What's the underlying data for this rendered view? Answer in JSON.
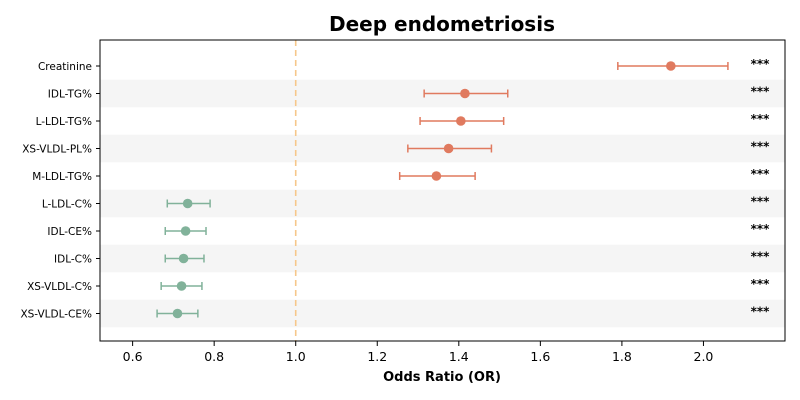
{
  "chart_data": {
    "type": "forest",
    "title": "Deep endometriosis",
    "xlabel": "Odds Ratio (OR)",
    "ylabel": "",
    "xlim": [
      0.52,
      2.2
    ],
    "xticks": [
      0.6,
      0.8,
      1.0,
      1.2,
      1.4,
      1.6,
      1.8,
      2.0
    ],
    "xtick_labels": [
      "0.6",
      "0.8",
      "1.0",
      "1.2",
      "1.4",
      "1.6",
      "1.8",
      "2.0"
    ],
    "reference_line": 1.0,
    "grid": false,
    "colors": {
      "increased": "#E07A5F",
      "decreased": "#81B29A",
      "reference": "#F6C78A",
      "stripe": "#F5F5F5"
    },
    "rows": [
      {
        "label": "Creatinine",
        "or": 1.92,
        "lo": 1.79,
        "hi": 2.06,
        "sig": "***",
        "direction": "increased"
      },
      {
        "label": "IDL-TG%",
        "or": 1.415,
        "lo": 1.315,
        "hi": 1.52,
        "sig": "***",
        "direction": "increased"
      },
      {
        "label": "L-LDL-TG%",
        "or": 1.405,
        "lo": 1.305,
        "hi": 1.51,
        "sig": "***",
        "direction": "increased"
      },
      {
        "label": "XS-VLDL-PL%",
        "or": 1.375,
        "lo": 1.275,
        "hi": 1.48,
        "sig": "***",
        "direction": "increased"
      },
      {
        "label": "M-LDL-TG%",
        "or": 1.345,
        "lo": 1.255,
        "hi": 1.44,
        "sig": "***",
        "direction": "increased"
      },
      {
        "label": "L-LDL-C%",
        "or": 0.735,
        "lo": 0.685,
        "hi": 0.79,
        "sig": "***",
        "direction": "decreased"
      },
      {
        "label": "IDL-CE%",
        "or": 0.73,
        "lo": 0.68,
        "hi": 0.78,
        "sig": "***",
        "direction": "decreased"
      },
      {
        "label": "IDL-C%",
        "or": 0.725,
        "lo": 0.68,
        "hi": 0.775,
        "sig": "***",
        "direction": "decreased"
      },
      {
        "label": "XS-VLDL-C%",
        "or": 0.72,
        "lo": 0.67,
        "hi": 0.77,
        "sig": "***",
        "direction": "decreased"
      },
      {
        "label": "XS-VLDL-CE%",
        "or": 0.71,
        "lo": 0.66,
        "hi": 0.76,
        "sig": "***",
        "direction": "decreased"
      }
    ]
  }
}
